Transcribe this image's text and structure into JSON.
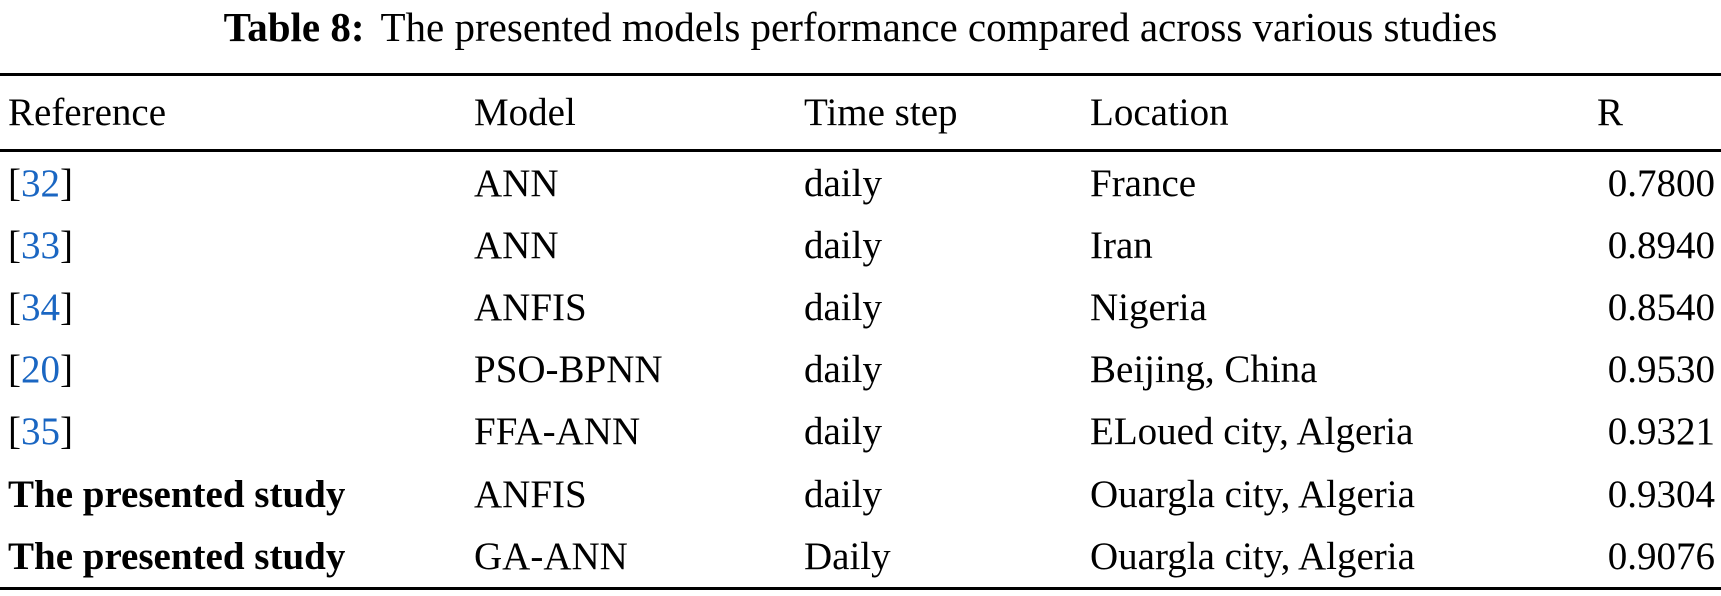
{
  "title": {
    "label": "Table 8:",
    "text": "The presented models performance compared across various studies"
  },
  "colors": {
    "citation_link": "#1a66c2",
    "text": "#000000",
    "rule": "#000000",
    "background": "#ffffff"
  },
  "table": {
    "headers": {
      "reference": "Reference",
      "model": "Model",
      "time_step": "Time step",
      "location": "Location",
      "r": "R"
    },
    "rows": [
      {
        "ref_open": "[",
        "ref_citation": "32",
        "ref_close": "]",
        "model": "ANN",
        "time_step": "daily",
        "location": "France",
        "r": "0.7800"
      },
      {
        "ref_open": "[",
        "ref_citation": "33",
        "ref_close": "]",
        "model": "ANN",
        "time_step": "daily",
        "location": "Iran",
        "r": "0.8940"
      },
      {
        "ref_open": "[",
        "ref_citation": "34",
        "ref_close": "]",
        "model": "ANFIS",
        "time_step": "daily",
        "location": "Nigeria",
        "r": "0.8540"
      },
      {
        "ref_open": "[",
        "ref_citation": "20",
        "ref_close": "]",
        "model": "PSO-BPNN",
        "time_step": "daily",
        "location": "Beijing, China",
        "r": "0.9530"
      },
      {
        "ref_open": "[",
        "ref_citation": "35",
        "ref_close": "]",
        "model": "FFA-ANN",
        "time_step": "daily",
        "location": "ELoued city, Algeria",
        "r": "0.9321"
      },
      {
        "ref_text": "The presented study",
        "model": "ANFIS",
        "time_step": "daily",
        "location": "Ouargla city, Algeria",
        "r": "0.9304"
      },
      {
        "ref_text": "The presented study",
        "model": "GA-ANN",
        "time_step": "Daily",
        "location": "Ouargla city, Algeria",
        "r": "0.9076"
      }
    ]
  }
}
